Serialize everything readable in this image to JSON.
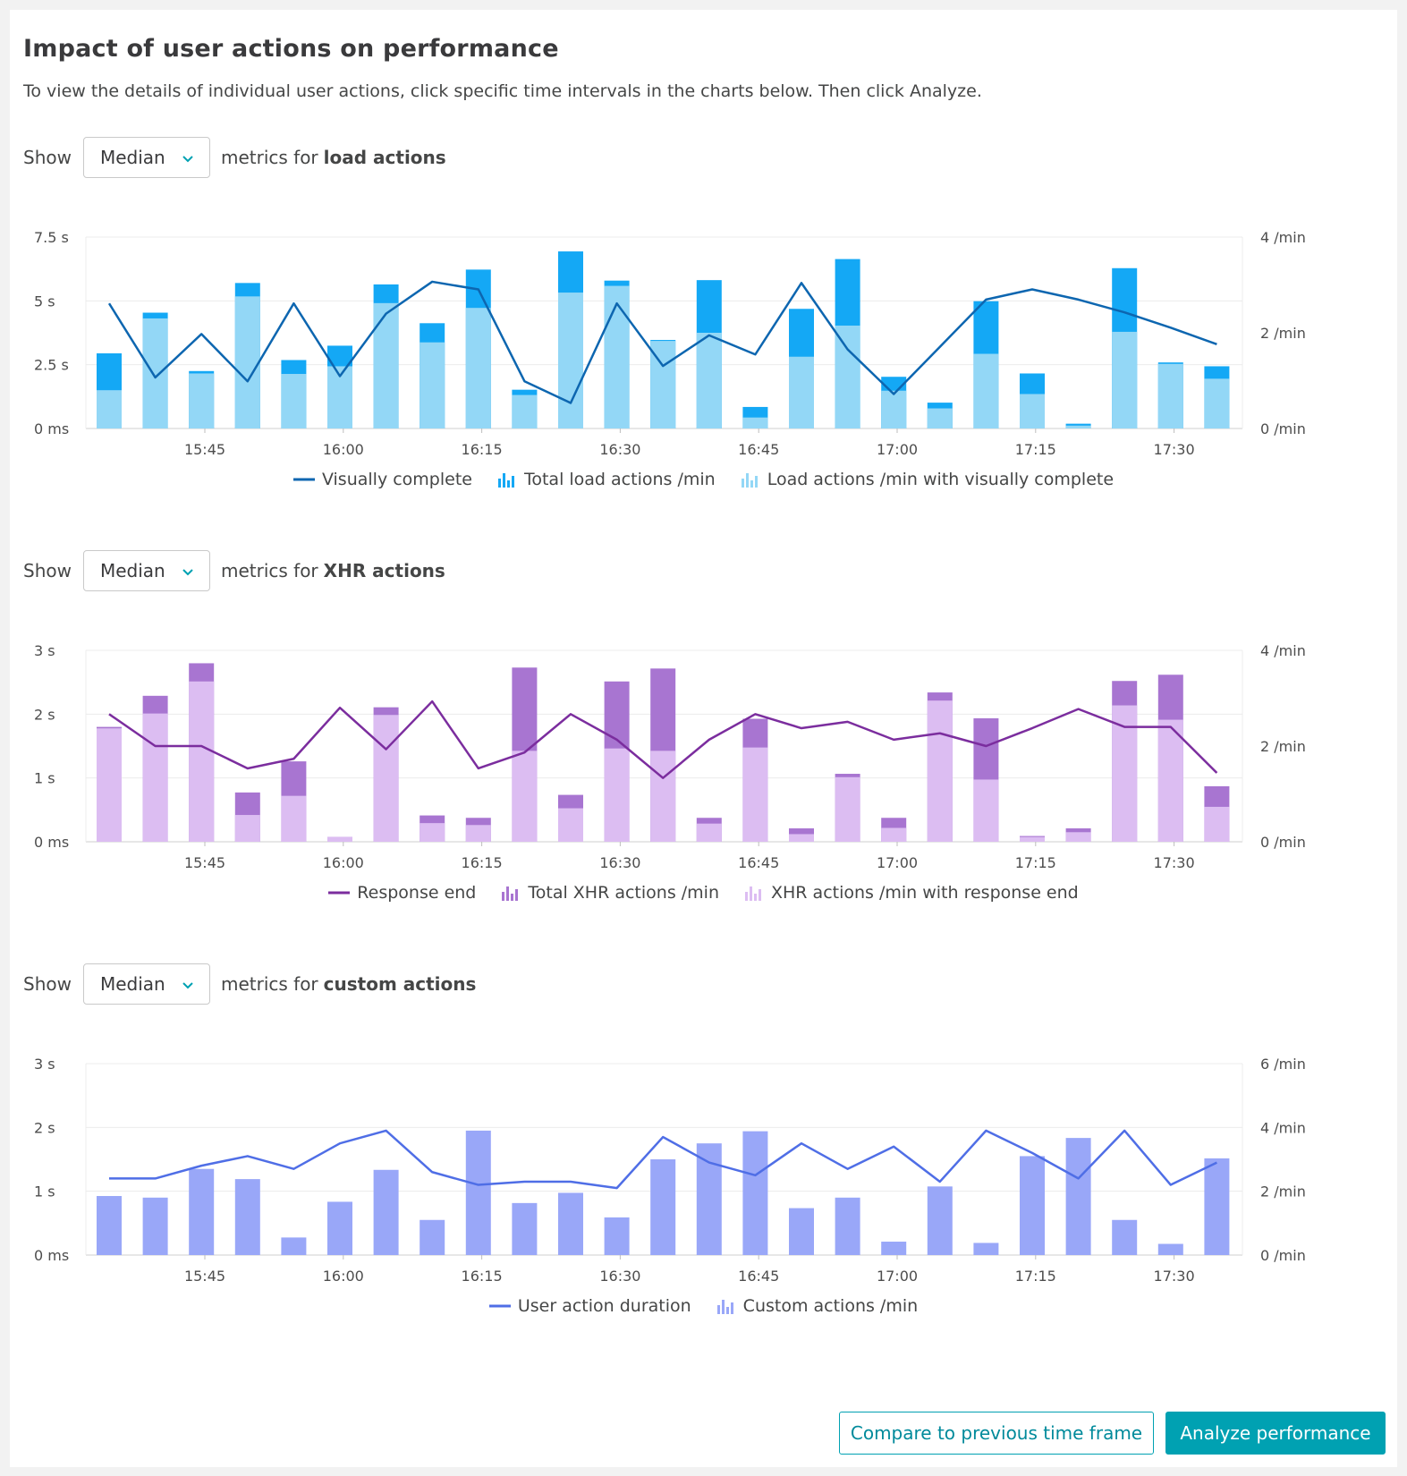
{
  "header": {
    "title": "Impact of user actions on performance",
    "intro": "To view the details of individual user actions, click specific time intervals in the charts below. Then click Analyze."
  },
  "sections": [
    {
      "show_label": "Show",
      "select_value": "Median",
      "metrics_prefix": "metrics for",
      "action_type": "load actions",
      "legend": [
        "Visually complete",
        "Total load actions /min",
        "Load actions /min with visually complete"
      ]
    },
    {
      "show_label": "Show",
      "select_value": "Median",
      "metrics_prefix": "metrics for",
      "action_type": "XHR actions",
      "legend": [
        "Response end",
        "Total XHR actions /min",
        "XHR actions /min with response end"
      ]
    },
    {
      "show_label": "Show",
      "select_value": "Median",
      "metrics_prefix": "metrics for",
      "action_type": "custom actions",
      "legend": [
        "User action duration",
        "Custom actions /min"
      ]
    }
  ],
  "actions": {
    "compare_label": "Compare to previous time frame",
    "analyze_label": "Analyze performance"
  },
  "colors": {
    "load_line": "#0d66b0",
    "load_total": "#14a8f5",
    "load_sub": "#93d7f6",
    "xhr_line": "#7b2d9e",
    "xhr_total": "#a875d1",
    "xhr_sub": "#dcbdf2",
    "custom_line": "#4f6ee6",
    "custom_bar": "#99a7f8",
    "accent": "#00a1b2"
  },
  "chart_data": [
    {
      "type": "bar+line",
      "x_ticks": [
        "15:45",
        "16:00",
        "16:15",
        "16:30",
        "16:45",
        "17:00",
        "17:15",
        "17:30"
      ],
      "y_left_ticks": [
        "0 ms",
        "2.5 s",
        "5 s",
        "7.5 s"
      ],
      "y_left_range": [
        0,
        7.5
      ],
      "y_right_ticks": [
        "0 /min",
        "2 /min",
        "4 /min"
      ],
      "y_right_range": [
        0,
        4
      ],
      "grid": true,
      "legend_position": "bottom",
      "series": [
        {
          "name": "Total load actions /min",
          "kind": "bar",
          "axis": "right",
          "values": [
            1.57,
            2.42,
            1.2,
            3.04,
            1.43,
            1.73,
            3.01,
            2.2,
            3.32,
            0.81,
            3.7,
            3.09,
            1.85,
            3.1,
            0.45,
            2.5,
            3.54,
            1.08,
            0.54,
            2.66,
            1.15,
            0.1,
            3.35,
            1.38,
            1.3
          ]
        },
        {
          "name": "Load actions /min with visually complete",
          "kind": "bar",
          "axis": "right",
          "values": [
            0.8,
            2.3,
            1.15,
            2.76,
            1.14,
            1.3,
            2.62,
            1.8,
            2.52,
            0.7,
            2.84,
            2.98,
            1.83,
            2.0,
            0.23,
            1.5,
            2.15,
            0.79,
            0.42,
            1.56,
            0.72,
            0.06,
            2.02,
            1.35,
            1.04
          ]
        },
        {
          "name": "Visually complete",
          "kind": "line",
          "axis": "left",
          "values": [
            4.9,
            2.0,
            3.7,
            1.85,
            4.9,
            2.05,
            4.5,
            5.75,
            5.45,
            1.85,
            1.0,
            4.9,
            2.45,
            3.65,
            2.9,
            5.7,
            3.1,
            1.35,
            3.2,
            5.05,
            5.45,
            5.05,
            4.55,
            3.95,
            3.3
          ]
        }
      ]
    },
    {
      "type": "bar+line",
      "x_ticks": [
        "15:45",
        "16:00",
        "16:15",
        "16:30",
        "16:45",
        "17:00",
        "17:15",
        "17:30"
      ],
      "y_left_ticks": [
        "0 ms",
        "1 s",
        "2 s",
        "3 s"
      ],
      "y_left_range": [
        0,
        3
      ],
      "y_right_ticks": [
        "0 /min",
        "2 /min",
        "4 /min"
      ],
      "y_right_range": [
        0,
        4
      ],
      "grid": true,
      "legend_position": "bottom",
      "series": [
        {
          "name": "Total XHR actions /min",
          "kind": "bar",
          "axis": "right",
          "values": [
            2.4,
            3.05,
            3.73,
            1.03,
            1.68,
            0.1,
            2.81,
            0.55,
            0.5,
            3.64,
            0.98,
            3.35,
            3.62,
            0.5,
            2.57,
            0.28,
            1.42,
            0.5,
            3.12,
            2.58,
            0.12,
            0.28,
            3.36,
            3.49,
            1.16
          ]
        },
        {
          "name": "XHR actions /min with response end",
          "kind": "bar",
          "axis": "right",
          "values": [
            2.37,
            2.68,
            3.35,
            0.56,
            0.96,
            0.1,
            2.65,
            0.39,
            0.35,
            1.9,
            0.7,
            1.95,
            1.9,
            0.38,
            1.97,
            0.16,
            1.35,
            0.29,
            2.95,
            1.3,
            0.1,
            0.2,
            2.85,
            2.55,
            0.73
          ]
        },
        {
          "name": "Response end",
          "kind": "line",
          "axis": "left",
          "values": [
            2.0,
            1.5,
            1.5,
            1.15,
            1.3,
            2.1,
            1.45,
            2.2,
            1.15,
            1.4,
            2.0,
            1.6,
            1.0,
            1.6,
            2.0,
            1.78,
            1.88,
            1.6,
            1.7,
            1.5,
            1.78,
            2.08,
            1.8,
            1.8,
            1.08
          ]
        }
      ]
    },
    {
      "type": "bar+line",
      "x_ticks": [
        "15:45",
        "16:00",
        "16:15",
        "16:30",
        "16:45",
        "17:00",
        "17:15",
        "17:30"
      ],
      "y_left_ticks": [
        "0 ms",
        "1 s",
        "2 s",
        "3 s"
      ],
      "y_left_range": [
        0,
        3
      ],
      "y_right_ticks": [
        "0 /min",
        "2 /min",
        "4 /min",
        "6 /min"
      ],
      "y_right_range": [
        0,
        6
      ],
      "grid": true,
      "legend_position": "bottom",
      "series": [
        {
          "name": "Custom actions /min",
          "kind": "bar",
          "axis": "right",
          "values": [
            1.85,
            1.8,
            2.7,
            2.38,
            0.55,
            1.67,
            2.67,
            1.1,
            3.9,
            1.63,
            1.95,
            1.18,
            3.0,
            3.5,
            3.88,
            1.47,
            1.8,
            0.42,
            2.15,
            0.38,
            3.1,
            3.67,
            1.1,
            0.35,
            3.03
          ]
        },
        {
          "name": "User action duration",
          "kind": "line",
          "axis": "left",
          "values": [
            1.2,
            1.2,
            1.4,
            1.55,
            1.35,
            1.75,
            1.95,
            1.3,
            1.1,
            1.15,
            1.15,
            1.05,
            1.85,
            1.45,
            1.25,
            1.75,
            1.35,
            1.7,
            1.15,
            1.95,
            1.6,
            1.2,
            1.95,
            1.1,
            1.45
          ]
        }
      ]
    }
  ]
}
